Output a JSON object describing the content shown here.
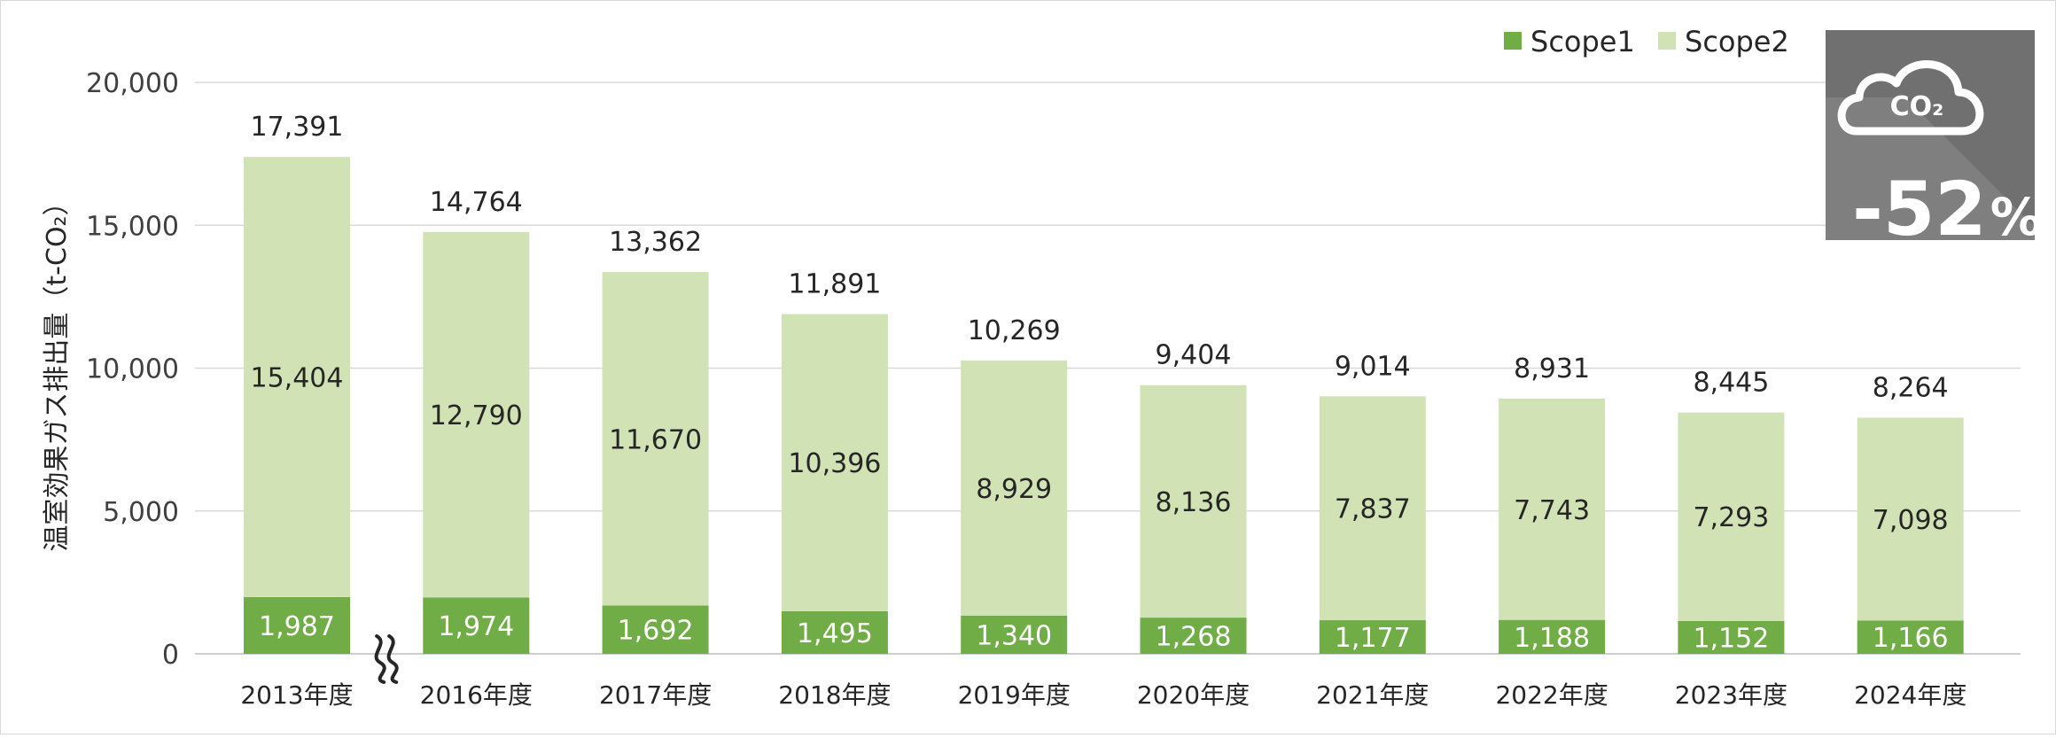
{
  "chart_data": {
    "type": "bar",
    "stacked": true,
    "categories": [
      "2013年度",
      "2016年度",
      "2017年度",
      "2018年度",
      "2019年度",
      "2020年度",
      "2021年度",
      "2022年度",
      "2023年度",
      "2024年度"
    ],
    "series": [
      {
        "name": "Scope1",
        "color": "#70ad47",
        "values": [
          1987,
          1974,
          1692,
          1495,
          1340,
          1268,
          1177,
          1188,
          1152,
          1166
        ]
      },
      {
        "name": "Scope2",
        "color": "#d1e3b4",
        "values": [
          15404,
          12790,
          11670,
          10396,
          8929,
          8136,
          7837,
          7743,
          7293,
          7098
        ]
      }
    ],
    "totals": [
      17391,
      14764,
      13362,
      11891,
      10269,
      9404,
      9014,
      8931,
      8445,
      8264
    ],
    "ylabel": "温室効果ガス排出量（t-CO₂）",
    "ylim": [
      0,
      20000
    ],
    "yticks": [
      0,
      5000,
      10000,
      15000,
      20000
    ],
    "grid": true,
    "legend_position": "top-right",
    "axis_break_after": "2013年度"
  },
  "badge": {
    "icon": "co2-cloud-icon",
    "icon_label": "CO₂",
    "value": "-52",
    "unit": "%"
  },
  "colors": {
    "scope1": "#70ad47",
    "scope2": "#d1e3b4",
    "badge_dark": "#707070",
    "badge_light": "#8c8c8c",
    "grid": "#d9d9d9"
  }
}
